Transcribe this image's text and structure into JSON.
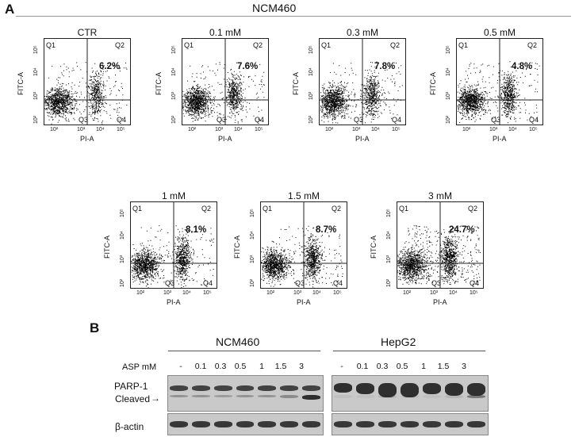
{
  "panel_a": {
    "letter": "A",
    "cell_line": "NCM460",
    "quadrants": [
      "Q1",
      "Q2",
      "Q3",
      "Q4"
    ],
    "y_axis": "FITC-A",
    "x_axis": "PI-A",
    "ticks": [
      "10²",
      "10³",
      "10⁴",
      "10⁵"
    ],
    "plots": [
      {
        "title": "CTR",
        "value": "6.2%"
      },
      {
        "title": "0.1 mM",
        "value": "7.6%"
      },
      {
        "title": "0.3 mM",
        "value": "7.8%"
      },
      {
        "title": "0.5 mM",
        "value": "4.8%"
      },
      {
        "title": "1 mM",
        "value": "8.1%"
      },
      {
        "title": "1.5 mM",
        "value": "8.7%"
      },
      {
        "title": "3 mM",
        "value": "24.7%"
      }
    ]
  },
  "panel_b": {
    "letter": "B",
    "groups": [
      "NCM460",
      "HepG2"
    ],
    "asp_label": "ASP mM",
    "lanes": [
      "-",
      "0.1",
      "0.3",
      "0.5",
      "1",
      "1.5",
      "3"
    ],
    "row_parp": "PARP-1",
    "row_cleaved": "Cleaved",
    "row_actin": "β-actin"
  }
}
